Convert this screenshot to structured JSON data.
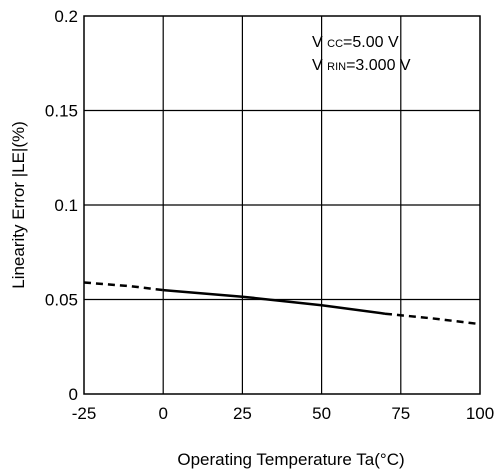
{
  "chart_data": {
    "type": "line",
    "xlabel": "Operating Temperature Ta(°C)",
    "ylabel": "Linearity Error |LE|(%)",
    "xlim": [
      -25,
      100
    ],
    "ylim": [
      0,
      0.2
    ],
    "x_ticks": [
      -25,
      0,
      25,
      50,
      75,
      100
    ],
    "x_tick_labels": [
      "-25",
      "0",
      "25",
      "50",
      "75",
      "100"
    ],
    "y_ticks": [
      0,
      0.05,
      0.1,
      0.15,
      0.2
    ],
    "y_tick_labels": [
      "0",
      "0.05",
      "0.1",
      "0.15",
      "0.2"
    ],
    "grid": true,
    "annotations": [
      {
        "prefix": "V",
        "sub": "CC",
        "suffix": "=5.00 V"
      },
      {
        "prefix": "V",
        "sub": "RIN",
        "suffix": "=3.000 V"
      }
    ],
    "series": [
      {
        "values": [
          {
            "x": -25,
            "y": 0.059,
            "style": "dashed"
          },
          {
            "x": -10,
            "y": 0.057,
            "style": "dashed"
          },
          {
            "x": 0,
            "y": 0.055,
            "style": "dashed"
          },
          {
            "x": 0,
            "y": 0.055,
            "style": "solid"
          },
          {
            "x": 25,
            "y": 0.0515,
            "style": "solid"
          },
          {
            "x": 50,
            "y": 0.047,
            "style": "solid"
          },
          {
            "x": 70,
            "y": 0.0425,
            "style": "solid"
          },
          {
            "x": 70,
            "y": 0.0425,
            "style": "dashed"
          },
          {
            "x": 85,
            "y": 0.04,
            "style": "dashed"
          },
          {
            "x": 100,
            "y": 0.037,
            "style": "dashed"
          }
        ]
      }
    ]
  }
}
